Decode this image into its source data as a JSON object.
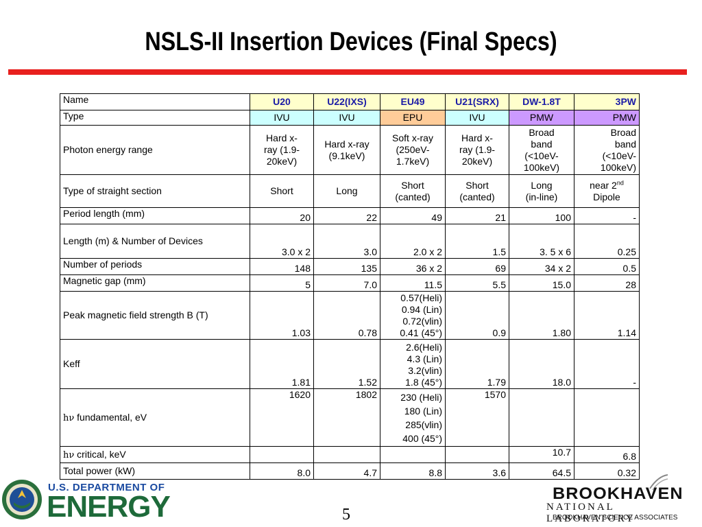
{
  "title": "NSLS-II Insertion Devices (Final Specs)",
  "columns": [
    "U20",
    "U22(IXS)",
    "EU49",
    "U21(SRX)",
    "DW-1.8T",
    "3PW"
  ],
  "rows": {
    "name_label": "Name",
    "type_label": "Type",
    "types": [
      "IVU",
      "IVU",
      "EPU",
      "IVU",
      "PMW",
      "PMW"
    ],
    "photon_label": "Photon energy range",
    "photon": [
      [
        "Hard x-",
        "ray (1.9-",
        "20keV)"
      ],
      [
        "Hard x-ray",
        "(9.1keV)"
      ],
      [
        "Soft x-ray",
        "(250eV-",
        "1.7keV)"
      ],
      [
        "Hard x-",
        "ray (1.9-",
        "20keV)"
      ],
      [
        "Broad",
        "band",
        "(<10eV-",
        "100keV)"
      ],
      [
        "Broad",
        "band",
        "(<10eV-",
        "100keV)"
      ]
    ],
    "straight_label": "Type of straight section",
    "straight": [
      [
        "Short"
      ],
      [
        "Long"
      ],
      [
        "Short",
        "(canted)"
      ],
      [
        "Short",
        "(canted)"
      ],
      [
        "Long",
        "(in-line)"
      ],
      [
        "near 2",
        "Dipole"
      ]
    ],
    "straight_sup": "nd",
    "period_label": "Period length (mm)",
    "period": [
      "20",
      "22",
      "49",
      "21",
      "100",
      "-"
    ],
    "length_label": "Length (m) & Number of Devices",
    "length": [
      "3.0 x 2",
      "3.0",
      "2.0 x 2",
      "1.5",
      "3. 5 x 6",
      "0.25"
    ],
    "nperiods_label": "Number of periods",
    "nperiods": [
      "148",
      "135",
      "36 x 2",
      "69",
      "34 x 2",
      "0.5"
    ],
    "gap_label": "Magnetic gap (mm)",
    "gap": [
      "5",
      "7.0",
      "11.5",
      "5.5",
      "15.0",
      "28"
    ],
    "peak_label": "Peak magnetic field strength B (T)",
    "peak": [
      "1.03",
      "0.78",
      "",
      "0.9",
      "1.80",
      "1.14"
    ],
    "peak_eu49": [
      "0.57(Heli)",
      "0.94 (Lin)",
      "0.72(vlin)",
      "0.41 (45°)"
    ],
    "keff_label": "Keff",
    "keff": [
      "1.81",
      "1.52",
      "",
      "1.79",
      "18.0",
      "-"
    ],
    "keff_eu49": [
      "2.6(Heli)",
      "4.3 (Lin)",
      "3.2(vlin)",
      "1.8 (45°)"
    ],
    "fund_label_sym": "hν",
    "fund_label": " fundamental, eV",
    "fund": [
      "1620",
      "1802",
      "",
      "1570",
      "",
      ""
    ],
    "fund_eu49": [
      "230 (Heli)",
      "180 (Lin)",
      "285(vlin)",
      "400 (45°)"
    ],
    "crit_label_sym": "hν",
    "crit_label": " critical, keV",
    "crit": [
      "",
      "",
      "",
      "",
      "10.7",
      "6.8"
    ],
    "power_label": "Total power (kW)",
    "power": [
      "8.0",
      "4.7",
      "8.8",
      "3.6",
      "64.5",
      "0.32"
    ]
  },
  "footer": {
    "doe_line1": "U.S. DEPARTMENT OF",
    "doe_line2": "ENERGY",
    "page_number": "5",
    "bnl_line1": "BROOKHAVEN",
    "bnl_line2": "NATIONAL LABORATORY",
    "bnl_line3": "BROOKHAVEN SCIENCE ASSOCIATES"
  },
  "colors": {
    "title_bar": "#e8201e",
    "header_fill": "#ffffcc",
    "header_text": "#1a1aa6",
    "ivu_fill": "#ccffff",
    "epu_fill": "#ffcc99",
    "pmw_fill": "#cc99ff"
  }
}
